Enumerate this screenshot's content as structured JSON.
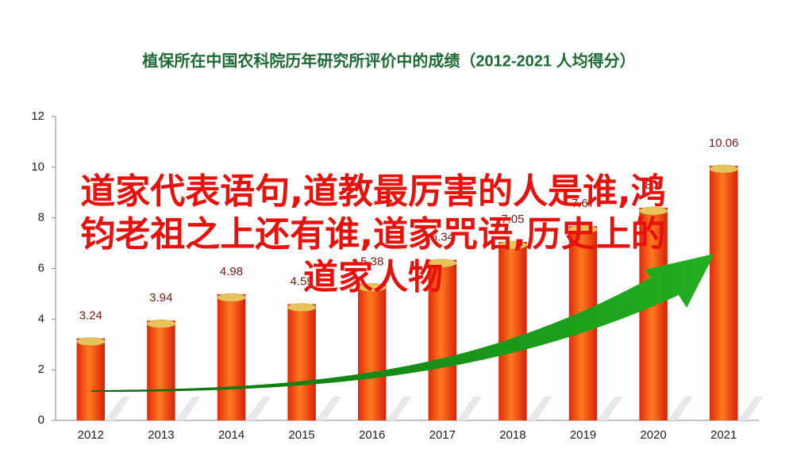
{
  "chart_data": {
    "type": "bar",
    "title": "植保所在中国农科院历年研究所评价中的成绩（2012-2021  人均得分）",
    "categories": [
      "2012",
      "2013",
      "2014",
      "2015",
      "2016",
      "2017",
      "2018",
      "2019",
      "2020",
      "2021"
    ],
    "values": [
      3.24,
      3.94,
      4.98,
      4.59,
      5.38,
      6.34,
      7.05,
      7.67,
      8.4,
      10.06
    ],
    "ylim": [
      0,
      12
    ],
    "yticks": [
      0,
      2,
      4,
      6,
      8,
      10,
      12
    ],
    "color": "#f03a10",
    "cap_color": "#e8c35a",
    "overlay": [
      "道家代表语句,道教最厉害的人是谁,鸿",
      "钧老祖之上还有谁,道家咒语,历史上的",
      "道家人物"
    ]
  }
}
